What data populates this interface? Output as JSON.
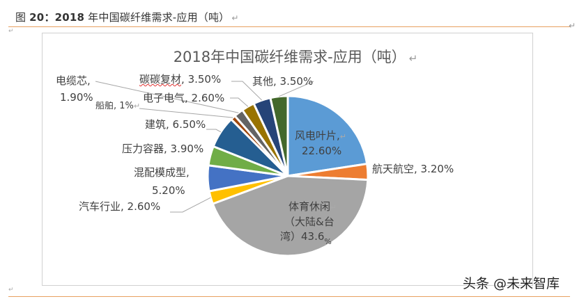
{
  "caption": {
    "prefix": "图 ",
    "number": "20：2018",
    "text": " 年中国碳纤维需求-应用（吨）",
    "return_mark": "↵"
  },
  "watermark": "头条 @未来智库",
  "colors": {
    "rule": "#e8a060",
    "frame": "#d0d0d0"
  },
  "chart_data": {
    "type": "pie",
    "title": "2018年中国碳纤维需求-应用（吨）",
    "unit": "%",
    "start_angle_deg": 0,
    "direction": "clockwise",
    "slices": [
      {
        "label": "风电叶片",
        "value": 22.6,
        "display": "22.60%",
        "color": "#5b9bd5"
      },
      {
        "label": "航天航空",
        "value": 3.2,
        "display": "3.20%",
        "color": "#ed7d31"
      },
      {
        "label": "体育休闲（大陆&台湾）",
        "value": 43.6,
        "display": "43.6%",
        "color": "#a5a5a5"
      },
      {
        "label": "汽车行业",
        "value": 2.6,
        "display": "2.60%",
        "color": "#ffc000"
      },
      {
        "label": "混配模成型",
        "value": 5.2,
        "display": "5.20%",
        "color": "#4472c4"
      },
      {
        "label": "压力容器",
        "value": 3.9,
        "display": "3.90%",
        "color": "#70ad47"
      },
      {
        "label": "建筑",
        "value": 6.5,
        "display": "6.50%",
        "color": "#255e91"
      },
      {
        "label": "船舶",
        "value": 1.0,
        "display": "1%",
        "color": "#9e480e"
      },
      {
        "label": "电缆芯",
        "value": 1.9,
        "display": "1.90%",
        "color": "#636363"
      },
      {
        "label": "电子电气",
        "value": 2.6,
        "display": "2.60%",
        "color": "#997300"
      },
      {
        "label": "碳碳复材",
        "value": 3.5,
        "display": "3.50%",
        "color": "#264478"
      },
      {
        "label": "其他",
        "value": 3.5,
        "display": "3.50%",
        "color": "#43682b"
      }
    ],
    "labels_text": {
      "wind": {
        "name": "风电叶片,",
        "pct": "22.60%"
      },
      "aero": {
        "name": "航天航空, ",
        "pct": "3.20%"
      },
      "sports": {
        "l1": "体育休闲",
        "l2": "（大陆&台",
        "l3": "湾）43.6",
        "pct": "%"
      },
      "auto": {
        "name": "汽车行业, ",
        "pct": "2.60%"
      },
      "mold": {
        "name": "混配模成型,",
        "pct": "5.20%"
      },
      "pressure": {
        "name": "压力容器, ",
        "pct": "3.90%"
      },
      "building": {
        "name": "建筑, ",
        "pct": "6.50%"
      },
      "ship": {
        "name": "船舶, ",
        "pct": "1%"
      },
      "cable": {
        "name": "电缆芯,",
        "pct": "1.90%"
      },
      "electronics": {
        "name": "电子电气, ",
        "pct": "2.60%"
      },
      "cc": {
        "name": "碳碳复材",
        "sep": ", ",
        "pct": "3.50%"
      },
      "other": {
        "name": "其他, ",
        "pct": "3.50%"
      }
    },
    "legend": "none",
    "data_labels": "category name and percentage with leader lines"
  }
}
